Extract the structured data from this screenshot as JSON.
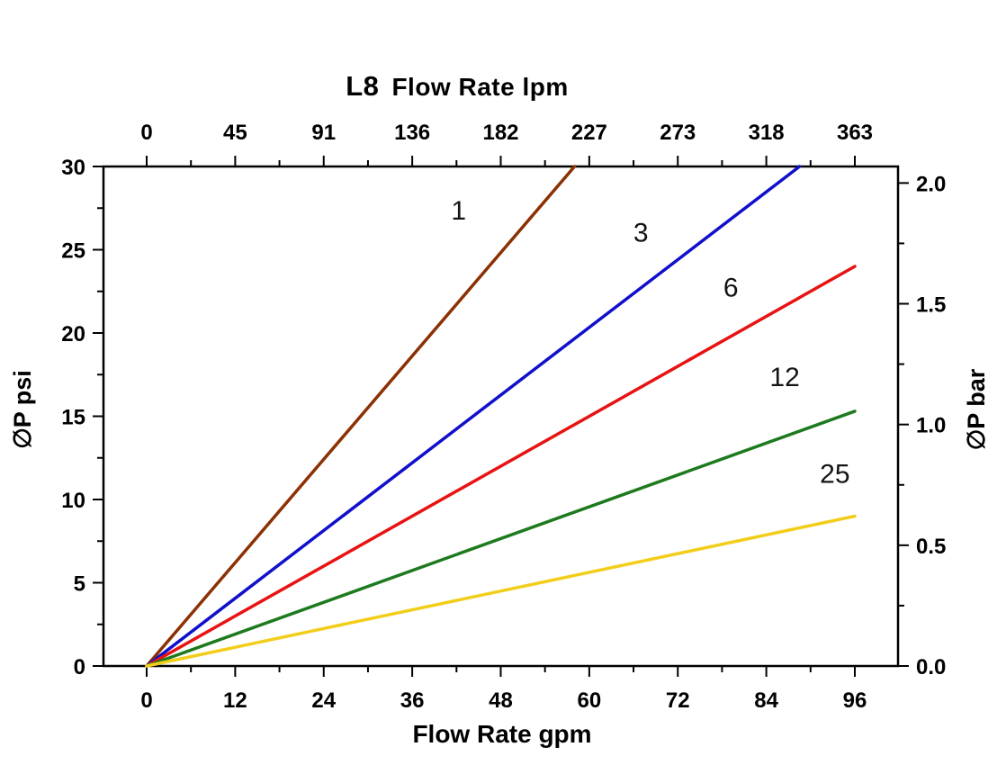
{
  "title": {
    "model": "L8",
    "rest": "Flow Rate lpm"
  },
  "axes": {
    "bottom_label": "Flow Rate gpm",
    "left_label": "∅P psi",
    "right_label": "∅P bar"
  },
  "chart_data": {
    "type": "line",
    "title": "L8 Flow Rate lpm",
    "xlabel": "Flow Rate gpm",
    "ylabel_left": "∅P psi",
    "ylabel_right": "∅P bar",
    "x_bottom": {
      "label": "Flow Rate gpm",
      "ticks": [
        0,
        12,
        24,
        36,
        48,
        60,
        72,
        84,
        96
      ],
      "minor_step": 6,
      "range": [
        0,
        96
      ]
    },
    "x_top": {
      "label": "L8 Flow Rate lpm",
      "values": [
        0,
        12,
        24,
        36,
        48,
        60,
        72,
        84,
        96
      ],
      "tick_labels": [
        "0",
        "45",
        "91",
        "136",
        "182",
        "227",
        "273",
        "318",
        "363"
      ]
    },
    "y_left": {
      "label": "∅P psi",
      "ticks": [
        0,
        5,
        10,
        15,
        20,
        25,
        30
      ],
      "range": [
        0,
        30
      ]
    },
    "y_right": {
      "label": "∅P bar",
      "ticks": [
        0,
        0.5,
        1,
        1.5,
        2
      ],
      "tick_labels": [
        "0.0",
        "0.5",
        "1.0",
        "1.5",
        "2.0"
      ],
      "psi_per_bar": 14.5038
    },
    "grid": false,
    "legend": "inline-labels",
    "series": [
      {
        "name": "1",
        "color": "#8B3103",
        "points": [
          [
            0,
            0
          ],
          [
            58,
            30
          ]
        ],
        "label_pos": [
          42.3,
          26.8
        ]
      },
      {
        "name": "3",
        "color": "#1010CC",
        "points": [
          [
            0,
            0
          ],
          [
            88.5,
            30
          ]
        ],
        "label_pos": [
          67,
          25.5
        ]
      },
      {
        "name": "6",
        "color": "#E81212",
        "points": [
          [
            0,
            0
          ],
          [
            96,
            24
          ]
        ],
        "label_pos": [
          79.2,
          22.2
        ]
      },
      {
        "name": "12",
        "color": "#1E7A1E",
        "points": [
          [
            0,
            0
          ],
          [
            96,
            15.3
          ]
        ],
        "label_pos": [
          86.5,
          16.8
        ]
      },
      {
        "name": "25",
        "color": "#F2CE1B",
        "points": [
          [
            0,
            0
          ],
          [
            96,
            9
          ]
        ],
        "label_pos": [
          93.3,
          11.0
        ]
      }
    ]
  }
}
